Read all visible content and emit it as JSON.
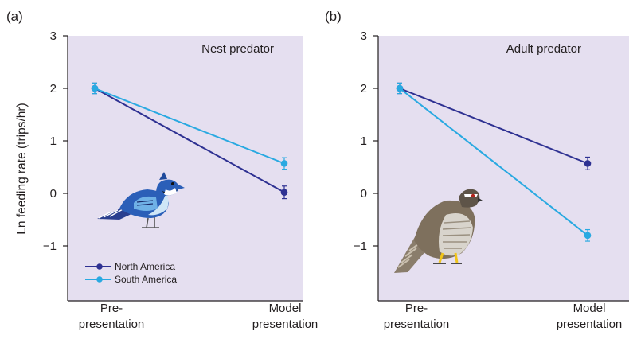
{
  "figure": {
    "ylabel": "Ln feeding rate (trips/hr)",
    "xcategories": [
      [
        "Pre-",
        "presentation"
      ],
      [
        "Model",
        "presentation"
      ]
    ],
    "yticks": [
      3,
      2,
      1,
      0,
      -1
    ],
    "ytick_labels": [
      "3",
      "2",
      "1",
      "0",
      "−1"
    ],
    "background_color": "#e5dff0"
  },
  "legend": [
    {
      "name": "North America",
      "color": "#2e3192"
    },
    {
      "name": "South America",
      "color": "#29a9e1"
    }
  ],
  "chart_data": [
    {
      "type": "line",
      "panel_label": "(a)",
      "title": "Nest predator",
      "x": [
        "Pre-presentation",
        "Model presentation"
      ],
      "ylim": [
        -2,
        3
      ],
      "ylabel": "Ln feeding rate (trips/hr)",
      "series": [
        {
          "name": "North America",
          "color": "#2e3192",
          "values": [
            2.0,
            0.02
          ],
          "error": [
            0.1,
            0.12
          ]
        },
        {
          "name": "South America",
          "color": "#29a9e1",
          "values": [
            2.0,
            0.57
          ],
          "error": [
            0.1,
            0.11
          ]
        }
      ],
      "illustration": "blue-jay-icon"
    },
    {
      "type": "line",
      "panel_label": "(b)",
      "title": "Adult predator",
      "x": [
        "Pre-presentation",
        "Model presentation"
      ],
      "ylim": [
        -2,
        3
      ],
      "series": [
        {
          "name": "North America",
          "color": "#2e3192",
          "values": [
            2.0,
            0.57
          ],
          "error": [
            0.1,
            0.12
          ]
        },
        {
          "name": "South America",
          "color": "#29a9e1",
          "values": [
            2.0,
            -0.8
          ],
          "error": [
            0.1,
            0.11
          ]
        }
      ],
      "illustration": "hawk-icon"
    }
  ]
}
